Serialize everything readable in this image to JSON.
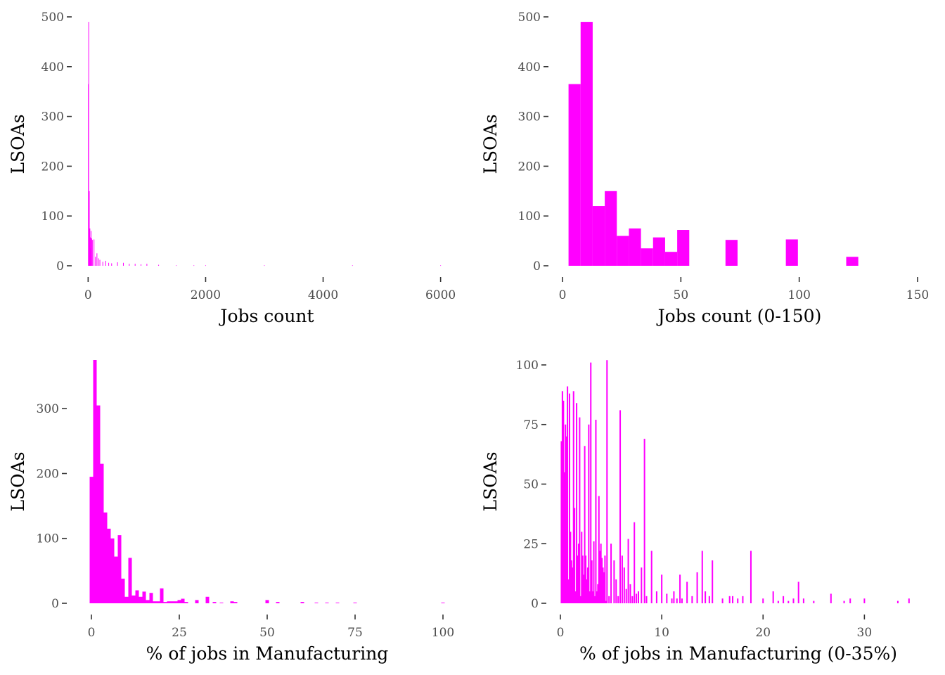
{
  "bar_color": "#ff00ff",
  "chart_data": [
    {
      "type": "bar",
      "title": "",
      "xlabel": "Jobs count",
      "ylabel": "LSOAs",
      "xlim": [
        -40,
        6160
      ],
      "ylim": [
        0,
        500
      ],
      "x_ticks": [
        0,
        2000,
        4000,
        6000
      ],
      "x_tick_labels": [
        "0",
        "2000",
        "4000",
        "6000"
      ],
      "y_ticks": [
        0,
        100,
        200,
        300,
        400,
        500
      ],
      "y_tick_labels": [
        "0",
        "100",
        "200",
        "300",
        "400",
        "500"
      ],
      "bin_width": 12,
      "series": [
        {
          "x": [
            5,
            10,
            15,
            20,
            25,
            30,
            35,
            40,
            50,
            60,
            72,
            100,
            125,
            150,
            175,
            200,
            250,
            300,
            350,
            400,
            500,
            600,
            700,
            800,
            900,
            1000,
            1200,
            1500,
            1800,
            2000,
            3000,
            4500,
            6000
          ],
          "values": [
            365,
            490,
            120,
            150,
            60,
            75,
            35,
            57,
            70,
            55,
            52,
            53,
            18,
            25,
            15,
            12,
            8,
            10,
            6,
            5,
            7,
            6,
            4,
            4,
            3,
            4,
            2,
            1,
            1,
            1,
            1,
            1,
            1
          ]
        }
      ]
    },
    {
      "type": "bar",
      "title": "",
      "xlabel": "Jobs count (0-150)",
      "ylabel": "LSOAs",
      "xlim": [
        0,
        150
      ],
      "ylim": [
        0,
        500
      ],
      "x_ticks": [
        0,
        50,
        100,
        150
      ],
      "x_tick_labels": [
        "0",
        "50",
        "100",
        "150"
      ],
      "y_ticks": [
        0,
        100,
        200,
        300,
        400,
        500
      ],
      "y_tick_labels": [
        "0",
        "100",
        "200",
        "300",
        "400",
        "500"
      ],
      "bin_width": 5.1,
      "series": [
        {
          "x": [
            5.1,
            10.2,
            15.3,
            20.4,
            25.5,
            30.6,
            35.7,
            40.8,
            45.9,
            51,
            71.4,
            96.9,
            122.4
          ],
          "values": [
            365,
            490,
            120,
            150,
            60,
            75,
            35,
            57,
            28,
            72,
            52,
            53,
            18
          ]
        }
      ]
    },
    {
      "type": "bar",
      "title": "",
      "xlabel": "% of jobs in Manufacturing",
      "ylabel": "LSOAs",
      "xlim": [
        -3,
        103
      ],
      "ylim": [
        0,
        375
      ],
      "x_ticks": [
        0,
        25,
        50,
        75,
        100
      ],
      "x_tick_labels": [
        "0",
        "25",
        "50",
        "75",
        "100"
      ],
      "y_ticks": [
        0,
        100,
        200,
        300
      ],
      "y_tick_labels": [
        "0",
        "100",
        "200",
        "300"
      ],
      "bin_width": 1,
      "series": [
        {
          "x": [
            0,
            1,
            2,
            3,
            4,
            5,
            6,
            7,
            8,
            9,
            10,
            11,
            12,
            13,
            14,
            15,
            16,
            17,
            18,
            19,
            20,
            21,
            22,
            23,
            24,
            25,
            26,
            27,
            30,
            33,
            35,
            37,
            40,
            41,
            50,
            53,
            60,
            64,
            67,
            70,
            75,
            100
          ],
          "values": [
            195,
            375,
            305,
            215,
            140,
            115,
            100,
            72,
            105,
            38,
            10,
            70,
            12,
            20,
            10,
            18,
            5,
            16,
            3,
            3,
            23,
            2,
            3,
            3,
            3,
            5,
            7,
            2,
            5,
            10,
            2,
            1,
            3,
            2,
            5,
            2,
            2,
            1,
            1,
            1,
            1,
            1
          ]
        }
      ]
    },
    {
      "type": "bar",
      "title": "",
      "xlabel": "% of jobs in Manufacturing (0-35%)",
      "ylabel": "LSOAs",
      "xlim": [
        0,
        34.9
      ],
      "ylim": [
        0,
        100
      ],
      "x_ticks": [
        0,
        10,
        20,
        30
      ],
      "x_tick_labels": [
        "0",
        "10",
        "20",
        "30"
      ],
      "y_ticks": [
        0,
        25,
        50,
        75,
        100
      ],
      "y_tick_labels": [
        "0",
        "25",
        "50",
        "75",
        "100"
      ],
      "bin_width": 0.14,
      "series": [
        {
          "x": [
            0.1,
            0.2,
            0.3,
            0.4,
            0.5,
            0.6,
            0.7,
            0.8,
            0.9,
            1,
            1.1,
            1.2,
            1.3,
            1.4,
            1.5,
            1.6,
            1.7,
            1.8,
            1.9,
            2,
            2.1,
            2.2,
            2.3,
            2.4,
            2.5,
            2.6,
            2.7,
            2.8,
            2.9,
            3,
            3.1,
            3.2,
            3.3,
            3.4,
            3.5,
            3.6,
            3.7,
            3.8,
            3.9,
            4,
            4.1,
            4.2,
            4.3,
            4.4,
            4.5,
            4.6,
            4.8,
            5,
            5.3,
            5.5,
            5.7,
            5.9,
            6.1,
            6.3,
            6.5,
            6.7,
            6.9,
            7.1,
            7.3,
            7.5,
            7.7,
            8,
            8.3,
            8.5,
            9,
            9.5,
            10,
            10.5,
            11,
            11.2,
            11.5,
            11.8,
            12,
            12.5,
            13,
            13.5,
            14,
            14.3,
            14.7,
            15,
            16,
            16.7,
            17,
            17.5,
            18,
            18.8,
            20,
            21,
            21.5,
            22,
            22.5,
            23,
            23.5,
            24,
            25,
            26.7,
            28,
            28.6,
            30,
            33.3,
            34.4
          ],
          "values": [
            68,
            89,
            85,
            55,
            75,
            70,
            91,
            10,
            88,
            30,
            18,
            15,
            89,
            40,
            5,
            84,
            20,
            25,
            78,
            3,
            30,
            20,
            12,
            66,
            20,
            10,
            15,
            75,
            5,
            101,
            18,
            5,
            26,
            3,
            77,
            5,
            8,
            45,
            22,
            25,
            19,
            15,
            13,
            20,
            1,
            102,
            3,
            25,
            18,
            10,
            3,
            81,
            20,
            15,
            6,
            27,
            8,
            3,
            34,
            4,
            5,
            15,
            69,
            3,
            22,
            5,
            12,
            4,
            2,
            5,
            2,
            12,
            2,
            9,
            3,
            13,
            22,
            5,
            3,
            18,
            2,
            3,
            3,
            2,
            3,
            22,
            2,
            5,
            1,
            3,
            1,
            2,
            9,
            2,
            1,
            4,
            1,
            2,
            2,
            1,
            2
          ]
        }
      ]
    }
  ]
}
